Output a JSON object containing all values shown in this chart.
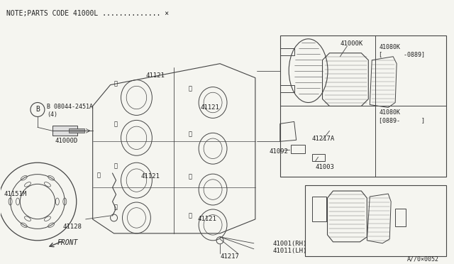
{
  "title": "NOTE;PARTS CODE 41000L .............. *",
  "bg_color": "#f5f5f0",
  "border_color": "#888888",
  "text_color": "#222222",
  "line_color": "#444444",
  "figsize": [
    6.4,
    3.72
  ],
  "dpi": 100,
  "parts": {
    "note": "NOTE;PARTS CODE 41000L .............. ×",
    "part_41001": "41001(RH)",
    "part_41011": "41011(LH)",
    "part_41217": "41217",
    "part_41121": "41121",
    "part_41000D": "41000D",
    "part_41000K": "41000K",
    "part_41080K_1": "41080K\n[      -0889]",
    "part_41080K_2": "41080K\n[0889-      ]",
    "part_41217A": "41217A",
    "part_41092": "41092",
    "part_41003": "41003",
    "part_41151M": "41151M",
    "part_41128": "41128",
    "part_08044": "B 08044-2451A\n(4)",
    "watermark": "A//0×0052"
  }
}
